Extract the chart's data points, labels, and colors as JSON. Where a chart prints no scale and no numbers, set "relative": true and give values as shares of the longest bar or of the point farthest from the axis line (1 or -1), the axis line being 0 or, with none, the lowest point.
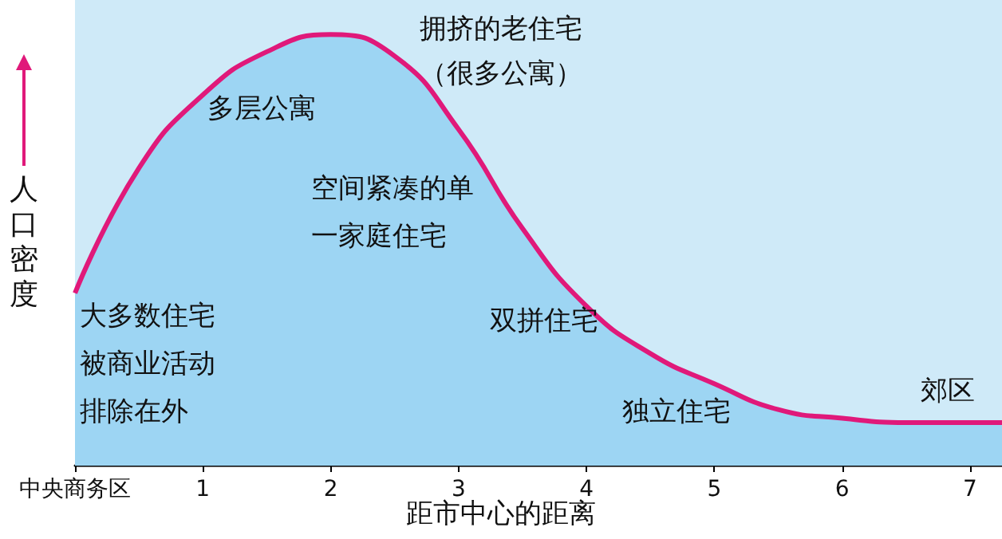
{
  "chart_data": {
    "type": "area",
    "relative": true,
    "xlabel": "距市中心的距离",
    "ylabel": "人口密度",
    "x": [
      0,
      0.5,
      1,
      1.5,
      2,
      2.5,
      3,
      3.5,
      4,
      4.5,
      5,
      5.5,
      6,
      6.5,
      7,
      7.25
    ],
    "series": [
      {
        "color": "#9dd5f3",
        "values": [
          0.4,
          0.69,
          0.86,
          0.96,
          1,
          0.95,
          0.78,
          0.55,
          0.37,
          0.26,
          0.19,
          0.13,
          0.11,
          0.1,
          0.1,
          0.1
        ]
      },
      {
        "type": "line",
        "color": "#e0197a",
        "values": [
          0.4,
          0.69,
          0.86,
          0.96,
          1,
          0.95,
          0.78,
          0.55,
          0.37,
          0.26,
          0.19,
          0.13,
          0.11,
          0.1,
          0.1,
          0.1
        ]
      }
    ],
    "xlim": [
      0,
      7.25
    ],
    "xticks": [
      {
        "value": 0,
        "label": "中央商务区"
      },
      1,
      2,
      3,
      4,
      5,
      6,
      7
    ],
    "annotations": [
      "拥挤的老住宅",
      "（很多公寓）",
      "多层公寓",
      "空间紧凑的单",
      "一家庭住宅",
      "大多数住宅",
      "被商业活动",
      "排除在外",
      "双拼住宅",
      "独立住宅",
      "郊区"
    ]
  }
}
